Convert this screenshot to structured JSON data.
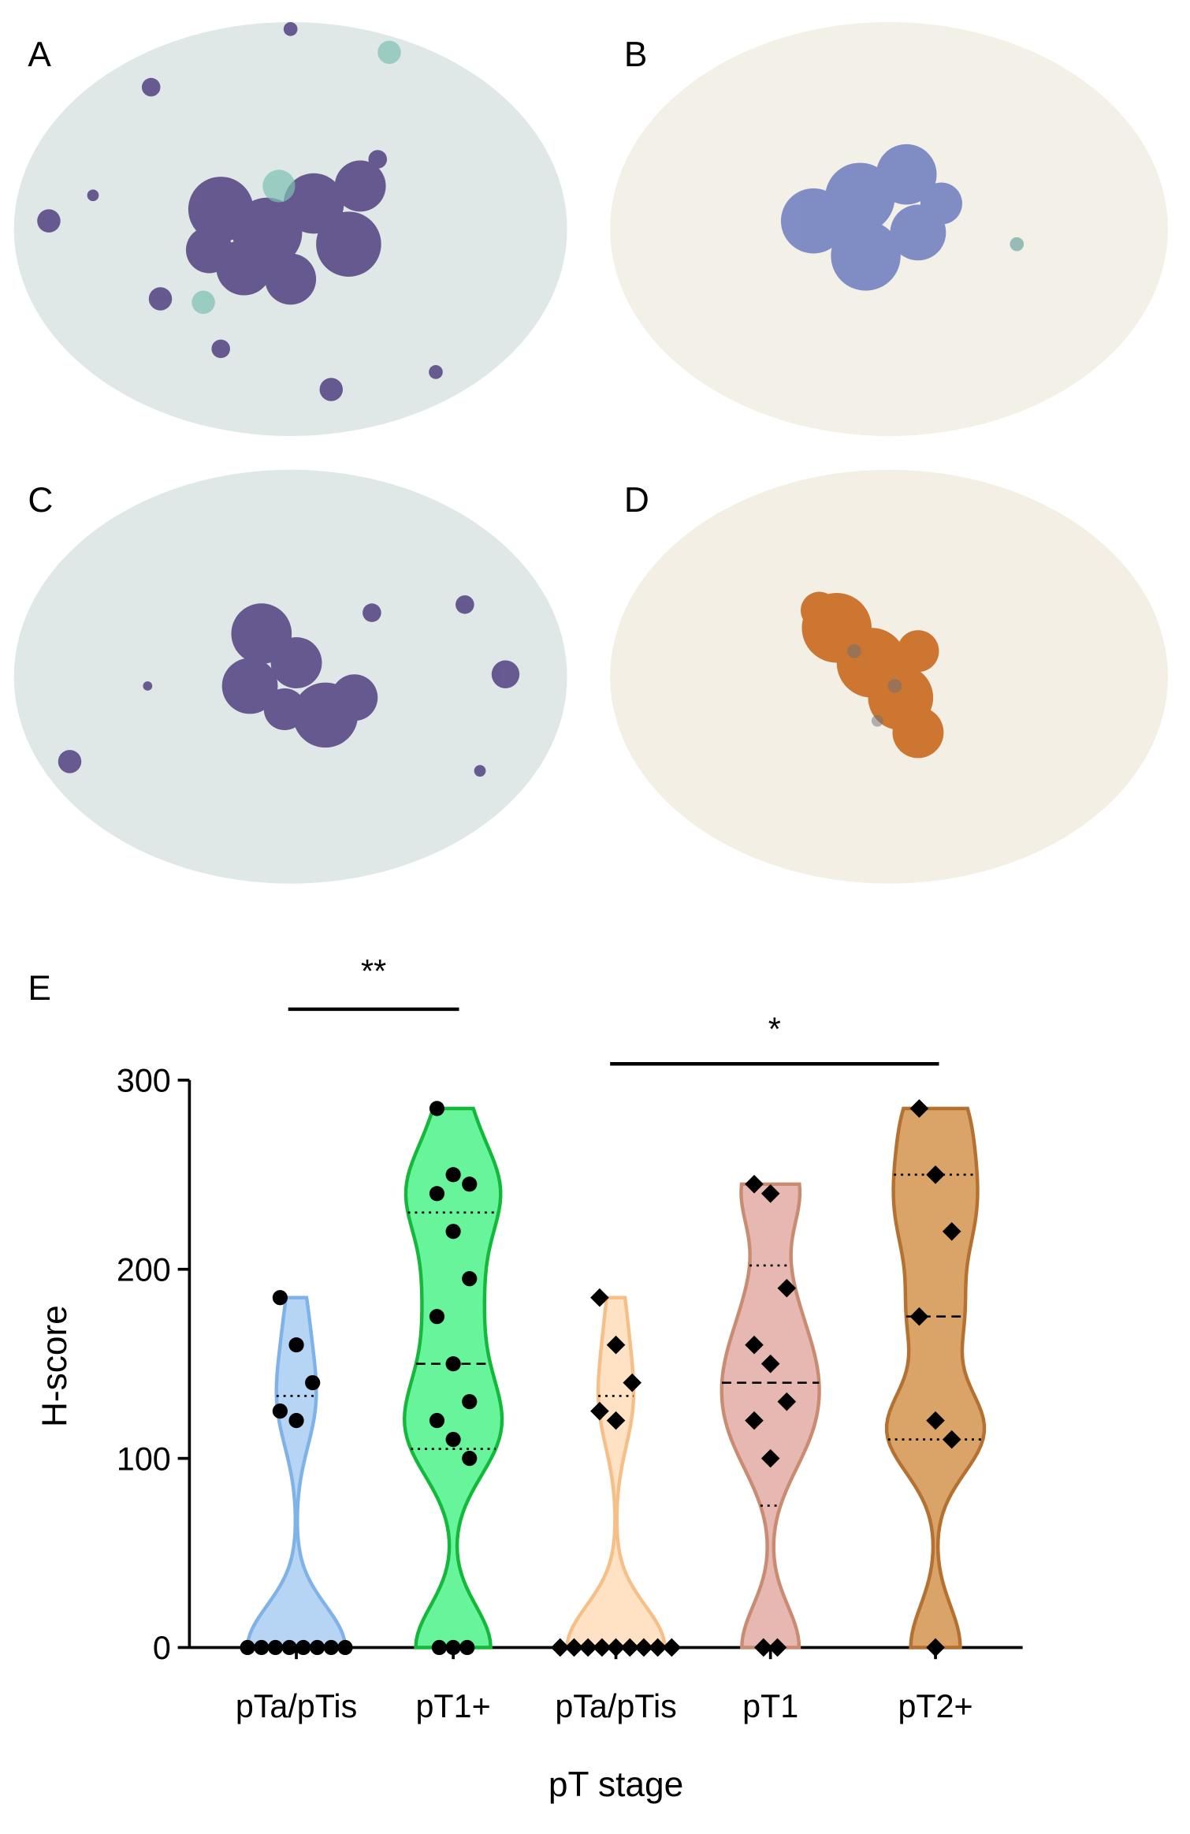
{
  "panel_labels": [
    "A",
    "B",
    "C",
    "D"
  ],
  "chart_data": {
    "type": "violin",
    "panel_label": "E",
    "x_label": "pT stage",
    "y_label": "H-score",
    "categories": [
      "pTa/pTis",
      "pT1+",
      "pTa/pTis",
      "pT1",
      "pT2+"
    ],
    "ylim": [
      0,
      300
    ],
    "yticks": [
      0,
      100,
      200,
      300
    ],
    "annotations": [
      "**",
      "*"
    ],
    "series": [
      {
        "color": "#a9cdf2",
        "edge": "#7fb2e6",
        "marker": "circle",
        "values": [
          185,
          160,
          140,
          125,
          120,
          0,
          0,
          0,
          0,
          0,
          0,
          0,
          0
        ],
        "median": 0,
        "q1": 0,
        "q3": 133
      },
      {
        "color": "#4cf289",
        "edge": "#14b83a",
        "marker": "circle",
        "values": [
          285,
          250,
          245,
          240,
          220,
          195,
          175,
          150,
          130,
          120,
          110,
          100,
          0,
          0,
          0
        ],
        "median": 150,
        "q1": 105,
        "q3": 230
      },
      {
        "color": "#ffdcba",
        "edge": "#f6bf88",
        "marker": "diamond",
        "values": [
          185,
          160,
          140,
          125,
          120,
          0,
          0,
          0,
          0,
          0,
          0,
          0,
          0,
          0
        ],
        "median": 0,
        "q1": 0,
        "q3": 133
      },
      {
        "color": "#e2aba3",
        "edge": "#c98c72",
        "marker": "diamond",
        "values": [
          245,
          240,
          190,
          160,
          150,
          130,
          120,
          100,
          0,
          0
        ],
        "median": 140,
        "q1": 75,
        "q3": 202
      },
      {
        "color": "#d4934c",
        "edge": "#b47131",
        "marker": "diamond",
        "values": [
          285,
          250,
          220,
          175,
          120,
          110,
          0
        ],
        "median": 175,
        "q1": 110,
        "q3": 250
      }
    ]
  }
}
